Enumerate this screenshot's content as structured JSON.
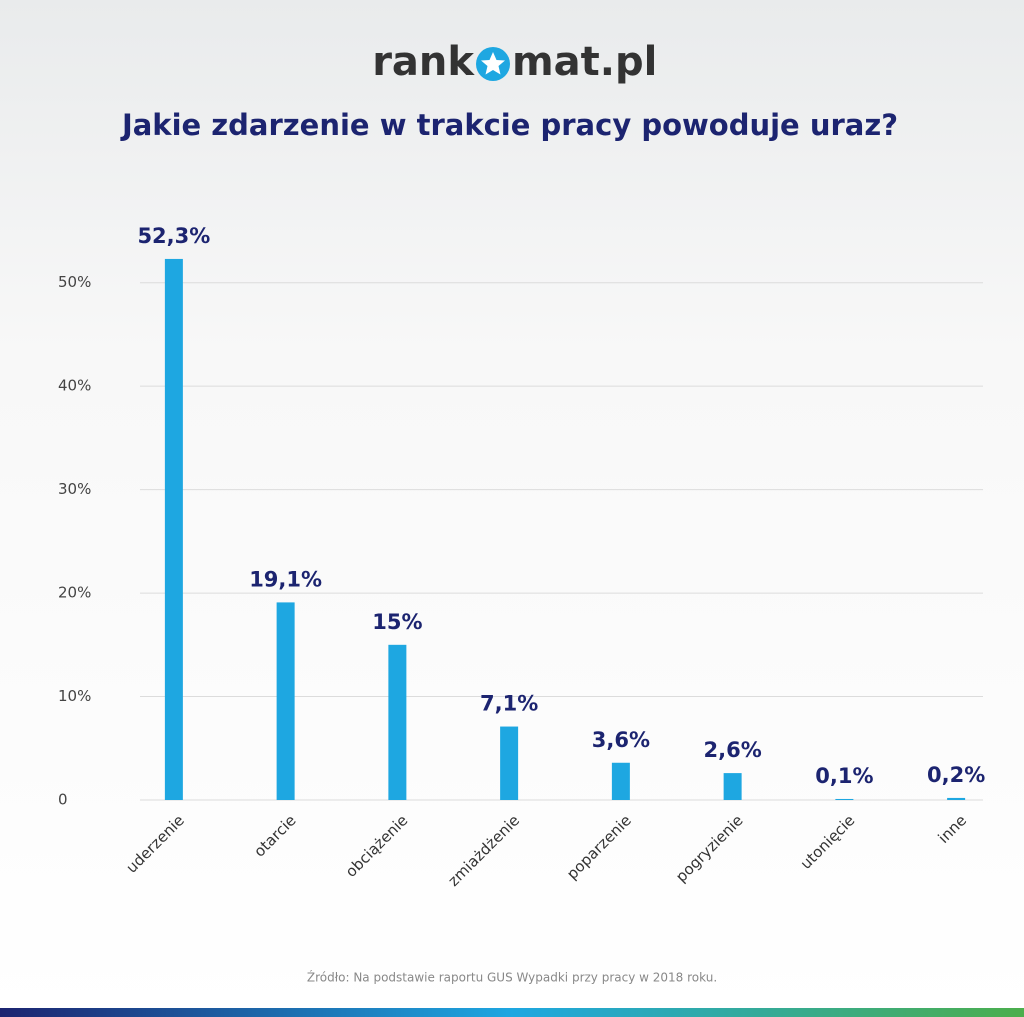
{
  "logo": {
    "left": "rank",
    "right": "mat.pl"
  },
  "chart_data": {
    "type": "bar",
    "title": "Jakie zdarzenie w trakcie pracy powoduje uraz?",
    "categories": [
      "uderzenie",
      "otarcie",
      "obciążenie",
      "zmiażdżenie",
      "poparzenie",
      "pogryzienie",
      "utonięcie",
      "inne"
    ],
    "values": [
      52.3,
      19.1,
      15,
      7.1,
      3.6,
      2.6,
      0.1,
      0.2
    ],
    "value_labels": [
      "52,3%",
      "19,1%",
      "15%",
      "7,1%",
      "3,6%",
      "2,6%",
      "0,1%",
      "0,2%"
    ],
    "color": "#1ea7e1",
    "ylim": [
      0,
      55
    ],
    "yticks": [
      0,
      {
        "value": 10,
        "label": "10%"
      },
      {
        "value": 20,
        "label": "20%"
      },
      {
        "value": 30,
        "label": "30%"
      },
      {
        "value": 40,
        "label": "40%"
      },
      {
        "value": 50,
        "label": "50%"
      }
    ],
    "grid": true,
    "source": "Źródło: Na podstawie raportu GUS Wypadki przy pracy w 2018 roku."
  }
}
